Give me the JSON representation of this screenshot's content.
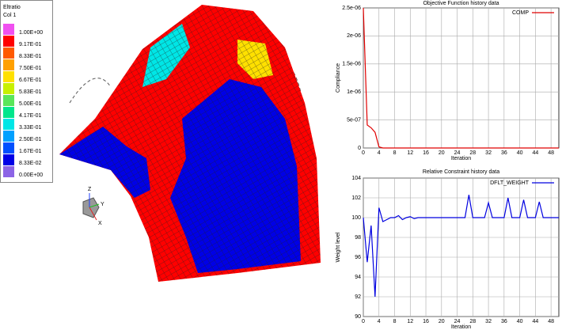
{
  "contour_legend": {
    "title": "Eltratio",
    "subtitle": "Col  1",
    "entries": [
      {
        "label": "1.00E+00",
        "color": "#f050f0"
      },
      {
        "label": "9.17E-01",
        "color": "#ff0000"
      },
      {
        "label": "8.33E-01",
        "color": "#ff5a00"
      },
      {
        "label": "7.50E-01",
        "color": "#ffa000"
      },
      {
        "label": "6.67E-01",
        "color": "#ffe000"
      },
      {
        "label": "5.83E-01",
        "color": "#c8f000"
      },
      {
        "label": "5.00E-01",
        "color": "#5ae65a"
      },
      {
        "label": "4.17E-01",
        "color": "#00e68c"
      },
      {
        "label": "3.33E-01",
        "color": "#00e6e6"
      },
      {
        "label": "2.50E-01",
        "color": "#00a0ff"
      },
      {
        "label": "1.67E-01",
        "color": "#0050ff"
      },
      {
        "label": "8.33E-02",
        "color": "#0000e6"
      },
      {
        "label": "0.00E+00",
        "color": "#8c64e6"
      }
    ]
  },
  "triad": {
    "z": "Z",
    "y": "Y",
    "x": "X"
  },
  "chart_data": [
    {
      "type": "line",
      "title": "Objective Function history data",
      "x_label": "Iteration",
      "y_label": "Compliance",
      "x": [
        0,
        1,
        2,
        3,
        4,
        5,
        6,
        7,
        8,
        9,
        10,
        11,
        12,
        13,
        14,
        15,
        16,
        17,
        18,
        19,
        20,
        21,
        22,
        23,
        24,
        25,
        26,
        27,
        28,
        29,
        30,
        31,
        32,
        33,
        34,
        35,
        36,
        37,
        38,
        39,
        40,
        41,
        42,
        43,
        44,
        45,
        46,
        47,
        48,
        49,
        50
      ],
      "series": [
        {
          "name": "COMP",
          "color": "#e00000",
          "values": [
            2.5e-06,
            4.1e-07,
            3.6e-07,
            2.8e-07,
            2e-08,
            0,
            0,
            0,
            0,
            0,
            0,
            0,
            0,
            0,
            0,
            0,
            0,
            0,
            0,
            0,
            0,
            0,
            0,
            0,
            0,
            0,
            0,
            0,
            0,
            0,
            0,
            0,
            0,
            0,
            0,
            0,
            0,
            0,
            0,
            0,
            0,
            0,
            0,
            0,
            0,
            0,
            0,
            0,
            0,
            0,
            0
          ]
        }
      ],
      "xlim": [
        0,
        50
      ],
      "xticks": [
        0,
        4,
        8,
        12,
        16,
        20,
        24,
        28,
        32,
        36,
        40,
        44,
        48
      ],
      "ylim": [
        0,
        2.5e-06
      ],
      "yticks": [
        {
          "value": 0,
          "label": "0"
        },
        {
          "value": 5e-07,
          "label": "5e-07"
        },
        {
          "value": 1e-06,
          "label": "1e-06"
        },
        {
          "value": 1.5e-06,
          "label": "1.5e-06"
        },
        {
          "value": 2e-06,
          "label": "2e-06"
        },
        {
          "value": 2.5e-06,
          "label": "2.5e-06"
        }
      ],
      "grid": true,
      "legend": "upper right"
    },
    {
      "type": "line",
      "title": "Relative Constraint history data",
      "x_label": "Iteration",
      "y_label": "Weight level",
      "x": [
        0,
        1,
        2,
        3,
        4,
        5,
        6,
        7,
        8,
        9,
        10,
        11,
        12,
        13,
        14,
        15,
        16,
        17,
        18,
        19,
        20,
        21,
        22,
        23,
        24,
        25,
        26,
        27,
        28,
        29,
        30,
        31,
        32,
        33,
        34,
        35,
        36,
        37,
        38,
        39,
        40,
        41,
        42,
        43,
        44,
        45,
        46,
        47,
        48,
        49,
        50
      ],
      "series": [
        {
          "name": "DFLT_WEIGHT",
          "color": "#0000e0",
          "values": [
            100,
            95.5,
            99.2,
            92,
            101,
            99.6,
            99.8,
            100,
            100,
            100.2,
            99.8,
            100,
            100.1,
            99.9,
            100,
            100,
            100,
            100,
            100,
            100,
            100,
            100,
            100,
            100,
            100,
            100,
            100,
            102.3,
            100,
            100,
            100,
            100,
            101.5,
            100,
            100,
            100,
            100,
            102,
            100,
            100,
            100,
            101.8,
            100,
            100,
            100,
            101.6,
            100,
            100,
            100,
            100,
            100
          ]
        }
      ],
      "xlim": [
        0,
        50
      ],
      "xticks": [
        0,
        4,
        8,
        12,
        16,
        20,
        24,
        28,
        32,
        36,
        40,
        44,
        48
      ],
      "ylim": [
        90,
        104
      ],
      "yticks": [
        90,
        92,
        94,
        96,
        98,
        100,
        102,
        104
      ],
      "grid": true,
      "legend": "upper right"
    }
  ]
}
